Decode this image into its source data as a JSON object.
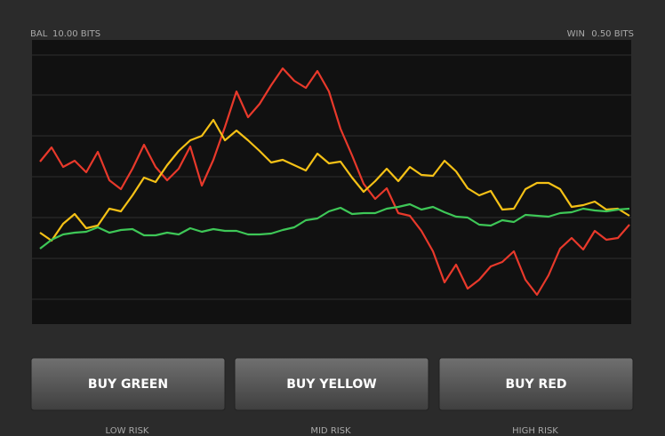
{
  "header": {
    "balance_label": "BAL",
    "balance": "10.00 BITS",
    "win_label": "WIN",
    "win": "0.50 BITS"
  },
  "chart_data": {
    "type": "line",
    "ylim": [
      0,
      320
    ],
    "series": [
      {
        "name": "Red",
        "color": "#e8392b",
        "values": [
          183,
          199,
          177,
          184,
          171,
          194,
          162,
          152,
          175,
          202,
          177,
          162,
          175,
          200,
          156,
          185,
          222,
          262,
          233,
          248,
          269,
          288,
          274,
          266,
          285,
          262,
          220,
          190,
          158,
          141,
          153,
          125,
          122,
          105,
          82,
          47,
          67,
          40,
          50,
          65,
          70,
          82,
          50,
          33,
          55,
          85,
          97,
          84,
          105,
          95,
          97,
          112
        ]
      },
      {
        "name": "Yellow",
        "color": "#f5c116",
        "values": [
          103,
          94,
          113,
          124,
          108,
          111,
          130,
          127,
          145,
          165,
          160,
          179,
          195,
          207,
          212,
          230,
          207,
          218,
          207,
          195,
          182,
          185,
          179,
          173,
          192,
          181,
          183,
          165,
          149,
          161,
          175,
          161,
          177,
          168,
          167,
          184,
          172,
          153,
          145,
          150,
          129,
          130,
          152,
          159,
          159,
          152,
          132,
          134,
          138,
          129,
          130,
          122
        ]
      },
      {
        "name": "Green",
        "color": "#3ec757",
        "values": [
          85,
          95,
          101,
          103,
          104,
          109,
          103,
          106,
          107,
          100,
          100,
          103,
          101,
          108,
          104,
          107,
          105,
          105,
          101,
          101,
          102,
          106,
          109,
          117,
          119,
          127,
          131,
          124,
          125,
          125,
          130,
          132,
          135,
          129,
          132,
          126,
          121,
          120,
          112,
          111,
          117,
          115,
          123,
          122,
          121,
          125,
          126,
          130,
          128,
          127,
          129,
          130
        ]
      }
    ]
  },
  "buttons": [
    {
      "label": "BUY GREEN",
      "risk": "LOW RISK"
    },
    {
      "label": "BUY YELLOW",
      "risk": "MID RISK"
    },
    {
      "label": "BUY RED",
      "risk": "HIGH RISK"
    }
  ]
}
